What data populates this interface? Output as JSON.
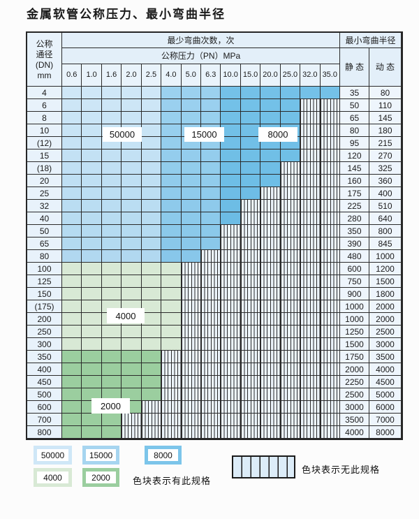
{
  "title": "金属软管公称压力、最小弯曲半径",
  "table": {
    "header": {
      "dn_lines": [
        "公称",
        "通径",
        "(DN)",
        "mm"
      ],
      "bend_cycles": "最少弯曲次数，次",
      "pressure": "公称压力（PN）MPa",
      "pressure_cols": [
        "0.6",
        "1.0",
        "1.6",
        "2.0",
        "2.5",
        "4.0",
        "5.0",
        "6.3",
        "10.0",
        "15.0",
        "20.0",
        "25.0",
        "32.0",
        "35.0"
      ],
      "radius": "最小弯曲半径",
      "static": "静 态",
      "dynamic": "动 态"
    },
    "rows": [
      {
        "dn": "4",
        "colored": 14,
        "zone": "blue",
        "static": "35",
        "dynamic": "80"
      },
      {
        "dn": "6",
        "colored": 12,
        "zone": "blue",
        "static": "50",
        "dynamic": "110"
      },
      {
        "dn": "8",
        "colored": 12,
        "zone": "blue",
        "static": "65",
        "dynamic": "145"
      },
      {
        "dn": "10",
        "colored": 12,
        "zone": "blue",
        "static": "80",
        "dynamic": "180"
      },
      {
        "dn": "(12)",
        "colored": 12,
        "zone": "blue",
        "static": "95",
        "dynamic": "215"
      },
      {
        "dn": "15",
        "colored": 12,
        "zone": "blue",
        "static": "120",
        "dynamic": "270"
      },
      {
        "dn": "(18)",
        "colored": 11,
        "zone": "blue",
        "static": "145",
        "dynamic": "325"
      },
      {
        "dn": "20",
        "colored": 11,
        "zone": "blue",
        "static": "160",
        "dynamic": "360"
      },
      {
        "dn": "25",
        "colored": 10,
        "zone": "blue",
        "static": "175",
        "dynamic": "400"
      },
      {
        "dn": "32",
        "colored": 9,
        "zone": "blue",
        "static": "225",
        "dynamic": "510"
      },
      {
        "dn": "40",
        "colored": 9,
        "zone": "blue",
        "static": "280",
        "dynamic": "640"
      },
      {
        "dn": "50",
        "colored": 8,
        "zone": "blue",
        "static": "350",
        "dynamic": "800"
      },
      {
        "dn": "65",
        "colored": 8,
        "zone": "blue",
        "static": "390",
        "dynamic": "845"
      },
      {
        "dn": "80",
        "colored": 7,
        "zone": "blue",
        "static": "480",
        "dynamic": "1000"
      },
      {
        "dn": "100",
        "colored": 6,
        "zone": "green_light",
        "static": "600",
        "dynamic": "1200"
      },
      {
        "dn": "125",
        "colored": 6,
        "zone": "green_light",
        "static": "750",
        "dynamic": "1500"
      },
      {
        "dn": "150",
        "colored": 6,
        "zone": "green_light",
        "static": "900",
        "dynamic": "1800"
      },
      {
        "dn": "(175)",
        "colored": 6,
        "zone": "green_light",
        "static": "1000",
        "dynamic": "2000"
      },
      {
        "dn": "200",
        "colored": 6,
        "zone": "green_light",
        "static": "1000",
        "dynamic": "2000"
      },
      {
        "dn": "250",
        "colored": 6,
        "zone": "green_light",
        "static": "1250",
        "dynamic": "2500"
      },
      {
        "dn": "300",
        "colored": 6,
        "zone": "green_light",
        "static": "1500",
        "dynamic": "3000"
      },
      {
        "dn": "350",
        "colored": 5,
        "zone": "green_mid",
        "static": "1750",
        "dynamic": "3500"
      },
      {
        "dn": "400",
        "colored": 5,
        "zone": "green_mid",
        "static": "2000",
        "dynamic": "4000"
      },
      {
        "dn": "450",
        "colored": 5,
        "zone": "green_mid",
        "static": "2250",
        "dynamic": "4500"
      },
      {
        "dn": "500",
        "colored": 5,
        "zone": "green_mid",
        "static": "2500",
        "dynamic": "5000"
      },
      {
        "dn": "600",
        "colored": 4,
        "zone": "green_mid",
        "static": "3000",
        "dynamic": "6000"
      },
      {
        "dn": "700",
        "colored": 3,
        "zone": "green_mid",
        "static": "3500",
        "dynamic": "7000"
      },
      {
        "dn": "800",
        "colored": 3,
        "zone": "green_mid",
        "static": "4000",
        "dynamic": "8000"
      }
    ]
  },
  "overlays": [
    {
      "text": "50000"
    },
    {
      "text": "15000"
    },
    {
      "text": "8000"
    },
    {
      "text": "4000"
    },
    {
      "text": "2000"
    }
  ],
  "legend": {
    "blocks": [
      {
        "label": "50000",
        "color": "#cfe7f7"
      },
      {
        "label": "15000",
        "color": "#a6d5f0"
      },
      {
        "label": "8000",
        "color": "#7cc5ea"
      },
      {
        "label": "4000",
        "color": "#d8e9d5"
      },
      {
        "label": "2000",
        "color": "#9bce9f"
      }
    ],
    "available_caption": "色块表示有此规格",
    "unavailable_caption": "色块表示无此规格"
  },
  "colors": {
    "blue_light": "#cfe7f7",
    "blue_mid": "#9bd1ef",
    "blue_deep": "#74c1e8",
    "blue_dark_mix": "#45a5d6",
    "green_light": "#d8e9d5",
    "green_mid": "#9bce9f",
    "hatch_bg": "#ecf4fb",
    "grid_line": "#2a2a2a"
  }
}
